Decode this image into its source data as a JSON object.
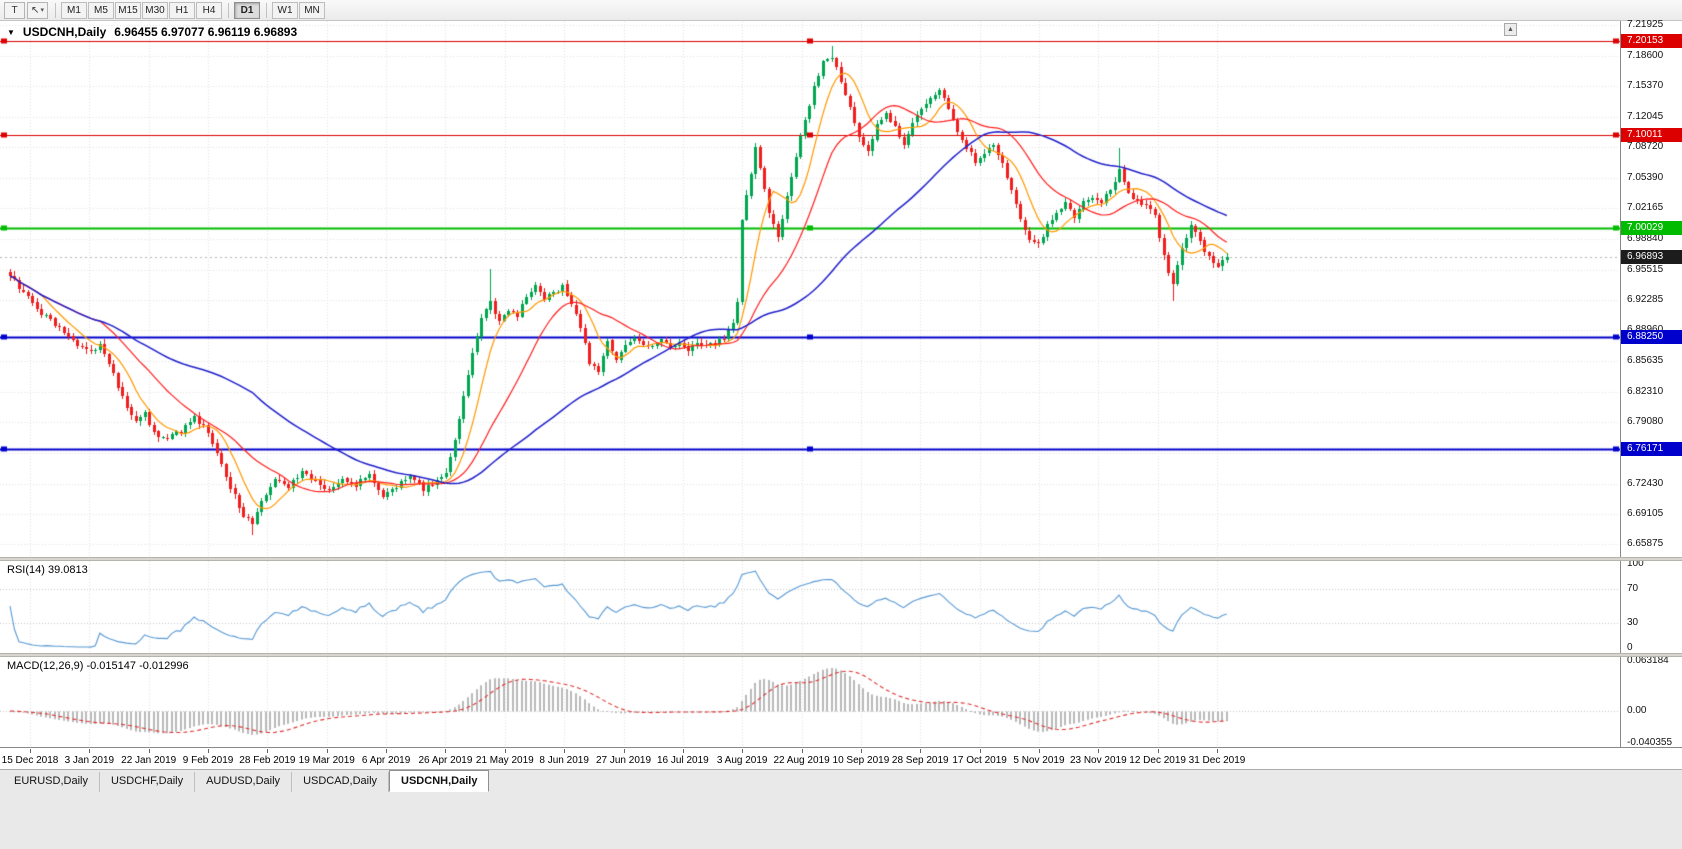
{
  "window": {
    "background": "#e9e9e9"
  },
  "toolbar": {
    "icon_buttons": [
      {
        "name": "templates-button",
        "icon": "template",
        "glyph": "T"
      },
      {
        "name": "cursor-tool-button",
        "icon": "cursor",
        "glyph": "↖",
        "dropdown_glyph": "▾"
      }
    ],
    "timeframes": [
      {
        "label": "M1"
      },
      {
        "label": "M5"
      },
      {
        "label": "M15"
      },
      {
        "label": "M30"
      },
      {
        "label": "H1"
      },
      {
        "label": "H4"
      },
      {
        "label": "D1",
        "active": true,
        "sep_before": true
      },
      {
        "label": "W1",
        "sep_before": true
      },
      {
        "label": "MN"
      }
    ]
  },
  "chart": {
    "collapse_glyph": "▼",
    "scroll_up_glyph": "▲",
    "symbol_label": "USDCNH,Daily",
    "ohlc_readout": "6.96455 6.97077 6.96119 6.96893"
  },
  "chart_data": {
    "type": "candlestick",
    "symbol": "USDCNH",
    "timeframe": "Daily",
    "current_ohlc": {
      "open": 6.96455,
      "high": 6.97077,
      "low": 6.96119,
      "close": 6.96893
    },
    "y_range": [
      6.645,
      7.2236
    ],
    "y_tick_labels": [
      "7.21925",
      "7.18600",
      "7.15370",
      "7.12045",
      "7.08720",
      "7.05390",
      "7.02165",
      "6.98840",
      "6.95515",
      "6.92285",
      "6.88960",
      "6.85635",
      "6.82310",
      "6.79080",
      "6.75755",
      "6.72430",
      "6.69105",
      "6.65875"
    ],
    "x_labels": [
      "15 Dec 2018",
      "3 Jan 2019",
      "22 Jan 2019",
      "9 Feb 2019",
      "28 Feb 2019",
      "19 Mar 2019",
      "6 Apr 2019",
      "26 Apr 2019",
      "21 May 2019",
      "8 Jun 2019",
      "27 Jun 2019",
      "16 Jul 2019",
      "3 Aug 2019",
      "22 Aug 2019",
      "10 Sep 2019",
      "28 Sep 2019",
      "17 Oct 2019",
      "5 Nov 2019",
      "23 Nov 2019",
      "12 Dec 2019",
      "31 Dec 2019"
    ],
    "hlines": [
      {
        "label": "7.20153",
        "price": 7.20153,
        "color": "#dd0000",
        "width": 1
      },
      {
        "label": "7.10011",
        "price": 7.10011,
        "color": "#dd0000",
        "width": 1
      },
      {
        "label": "7.00029",
        "price": 7.00029,
        "color": "#00bb00",
        "width": 2
      },
      {
        "label": "6.88250",
        "price": 6.8825,
        "color": "#0000cc",
        "width": 2
      },
      {
        "label": "6.76171",
        "price": 6.76171,
        "color": "#0000cc",
        "width": 2
      }
    ],
    "current_price": {
      "label": "6.96893",
      "value": 6.96893
    },
    "candle_count": 272,
    "trend_waypoints": [
      [
        0,
        6.948
      ],
      [
        3,
        6.93
      ],
      [
        6,
        6.912
      ],
      [
        9,
        6.9
      ],
      [
        12,
        6.886
      ],
      [
        15,
        6.872
      ],
      [
        18,
        6.866
      ],
      [
        20,
        6.875
      ],
      [
        23,
        6.842
      ],
      [
        26,
        6.805
      ],
      [
        28,
        6.79
      ],
      [
        30,
        6.8
      ],
      [
        32,
        6.778
      ],
      [
        35,
        6.772
      ],
      [
        38,
        6.782
      ],
      [
        41,
        6.796
      ],
      [
        44,
        6.78
      ],
      [
        46,
        6.758
      ],
      [
        49,
        6.72
      ],
      [
        52,
        6.69
      ],
      [
        54,
        6.682
      ],
      [
        56,
        6.705
      ],
      [
        59,
        6.73
      ],
      [
        62,
        6.722
      ],
      [
        65,
        6.738
      ],
      [
        68,
        6.726
      ],
      [
        71,
        6.716
      ],
      [
        74,
        6.73
      ],
      [
        77,
        6.722
      ],
      [
        80,
        6.735
      ],
      [
        83,
        6.712
      ],
      [
        86,
        6.722
      ],
      [
        89,
        6.732
      ],
      [
        92,
        6.718
      ],
      [
        95,
        6.728
      ],
      [
        97,
        6.738
      ],
      [
        99,
        6.772
      ],
      [
        101,
        6.82
      ],
      [
        103,
        6.868
      ],
      [
        105,
        6.902
      ],
      [
        107,
        6.922
      ],
      [
        109,
        6.898
      ],
      [
        111,
        6.912
      ],
      [
        113,
        6.905
      ],
      [
        115,
        6.928
      ],
      [
        117,
        6.938
      ],
      [
        119,
        6.922
      ],
      [
        121,
        6.93
      ],
      [
        123,
        6.938
      ],
      [
        125,
        6.92
      ],
      [
        127,
        6.892
      ],
      [
        129,
        6.856
      ],
      [
        131,
        6.846
      ],
      [
        133,
        6.878
      ],
      [
        135,
        6.86
      ],
      [
        137,
        6.872
      ],
      [
        139,
        6.884
      ],
      [
        141,
        6.876
      ],
      [
        143,
        6.87
      ],
      [
        145,
        6.878
      ],
      [
        147,
        6.872
      ],
      [
        149,
        6.876
      ],
      [
        151,
        6.87
      ],
      [
        153,
        6.878
      ],
      [
        155,
        6.872
      ],
      [
        157,
        6.876
      ],
      [
        159,
        6.88
      ],
      [
        161,
        6.896
      ],
      [
        162,
        6.92
      ],
      [
        163,
        7.01
      ],
      [
        164,
        7.035
      ],
      [
        165,
        7.06
      ],
      [
        166,
        7.09
      ],
      [
        167,
        7.062
      ],
      [
        169,
        7.018
      ],
      [
        171,
        6.988
      ],
      [
        173,
        7.032
      ],
      [
        175,
        7.078
      ],
      [
        177,
        7.118
      ],
      [
        179,
        7.152
      ],
      [
        181,
        7.178
      ],
      [
        183,
        7.186
      ],
      [
        185,
        7.158
      ],
      [
        187,
        7.132
      ],
      [
        189,
        7.098
      ],
      [
        191,
        7.082
      ],
      [
        193,
        7.112
      ],
      [
        195,
        7.122
      ],
      [
        197,
        7.108
      ],
      [
        199,
        7.088
      ],
      [
        201,
        7.112
      ],
      [
        203,
        7.128
      ],
      [
        205,
        7.142
      ],
      [
        207,
        7.148
      ],
      [
        209,
        7.128
      ],
      [
        211,
        7.102
      ],
      [
        213,
        7.088
      ],
      [
        215,
        7.072
      ],
      [
        217,
        7.082
      ],
      [
        219,
        7.092
      ],
      [
        221,
        7.068
      ],
      [
        223,
        7.042
      ],
      [
        225,
        7.012
      ],
      [
        227,
        6.988
      ],
      [
        229,
        6.982
      ],
      [
        231,
        7.002
      ],
      [
        233,
        7.018
      ],
      [
        235,
        7.028
      ],
      [
        237,
        7.012
      ],
      [
        239,
        7.028
      ],
      [
        241,
        7.035
      ],
      [
        243,
        7.028
      ],
      [
        245,
        7.042
      ],
      [
        247,
        7.062
      ],
      [
        249,
        7.035
      ],
      [
        251,
        7.028
      ],
      [
        253,
        7.025
      ],
      [
        255,
        7.015
      ],
      [
        256,
        6.988
      ],
      [
        258,
        6.952
      ],
      [
        259,
        6.938
      ],
      [
        261,
        6.978
      ],
      [
        263,
        7.002
      ],
      [
        265,
        6.985
      ],
      [
        267,
        6.968
      ],
      [
        269,
        6.958
      ],
      [
        271,
        6.96893
      ]
    ],
    "wick_extremes": [
      {
        "i": 54,
        "low": 6.669
      },
      {
        "i": 107,
        "high": 6.956
      },
      {
        "i": 183,
        "high": 7.1965
      },
      {
        "i": 247,
        "high": 7.0865
      },
      {
        "i": 259,
        "low": 6.921
      }
    ],
    "moving_averages": [
      {
        "period": 8,
        "color": "#ff9900"
      },
      {
        "period": 21,
        "color": "#ff2020"
      },
      {
        "period": 55,
        "color": "#2020cc"
      }
    ]
  },
  "rsi": {
    "label": "RSI(14) 39.0813",
    "period": 14,
    "current": 39.0813,
    "ticks": [
      {
        "label": "100",
        "value": 100
      },
      {
        "label": "70",
        "value": 70
      },
      {
        "label": "30",
        "value": 30
      },
      {
        "label": "0",
        "value": 0
      }
    ],
    "levels": [
      70,
      30
    ]
  },
  "macd": {
    "label": "MACD(12,26,9) -0.015147 -0.012996",
    "fast": 12,
    "slow": 26,
    "signal": 9,
    "macd_value": -0.015147,
    "signal_value": -0.012996,
    "ticks": [
      {
        "label": "0.063184",
        "value": 0.063184
      },
      {
        "label": "0.00",
        "value": 0
      },
      {
        "label": "-0.040355",
        "value": -0.040355
      }
    ]
  },
  "tabs": [
    {
      "label": "EURUSD,Daily"
    },
    {
      "label": "USDCHF,Daily"
    },
    {
      "label": "AUDUSD,Daily"
    },
    {
      "label": "USDCAD,Daily"
    },
    {
      "label": "USDCNH,Daily",
      "active": true
    }
  ],
  "colors": {
    "candle_up": "#00a651",
    "candle_down": "#f01e1e",
    "grid": "#e2e2e2",
    "rsi_line": "#5b9bd5",
    "rsi_levels": "#c8c8c8",
    "macd_histogram": "#b9b9b9",
    "macd_signal": "#e03535",
    "current_price_line": "#b8b8b8",
    "current_price_badge": "#1c1c1c",
    "axis_text": "#111111"
  }
}
